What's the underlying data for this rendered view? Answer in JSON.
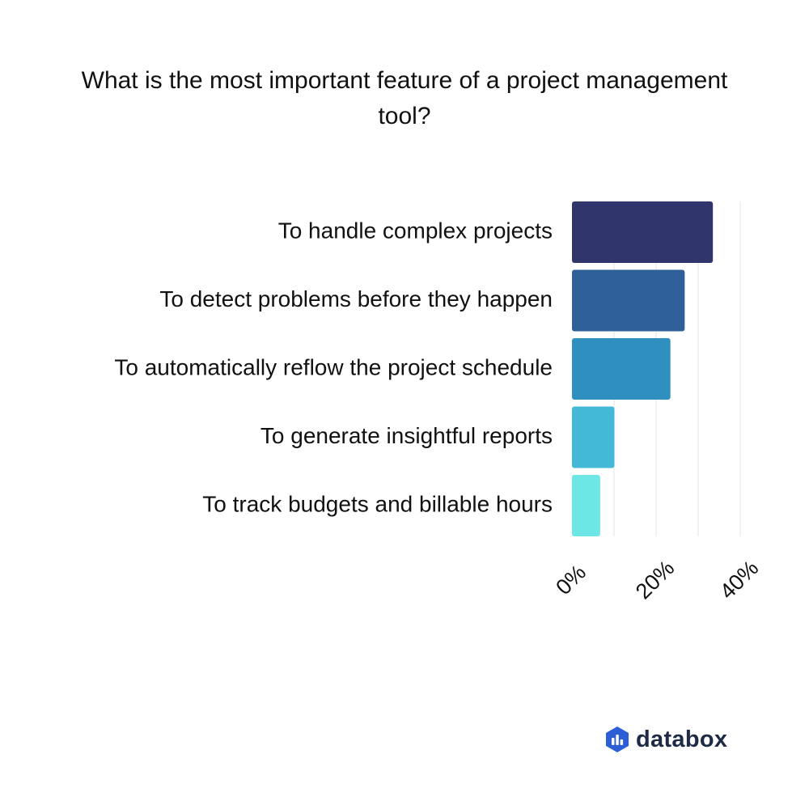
{
  "chart_data": {
    "type": "bar",
    "orientation": "horizontal",
    "title": "What is the most important feature of a project management tool?",
    "categories": [
      "To handle complex projects",
      "To detect problems before they happen",
      "To automatically reflow the project schedule",
      "To generate insightful reports",
      "To track budgets and billable hours"
    ],
    "values": [
      33.5,
      26.8,
      23.4,
      10.1,
      6.7
    ],
    "colors": [
      "#30356b",
      "#2e5f99",
      "#2f8fbf",
      "#43b9d7",
      "#6de6e6"
    ],
    "xlim": [
      0,
      40
    ],
    "x_ticks": [
      0,
      20,
      40
    ],
    "x_tick_labels": [
      "0%",
      "20%",
      "40%"
    ],
    "grid": true,
    "xlabel": "",
    "ylabel": ""
  },
  "brand": {
    "name": "databox",
    "icon": "databox-logo-icon",
    "icon_color": "#2c5fd6"
  }
}
